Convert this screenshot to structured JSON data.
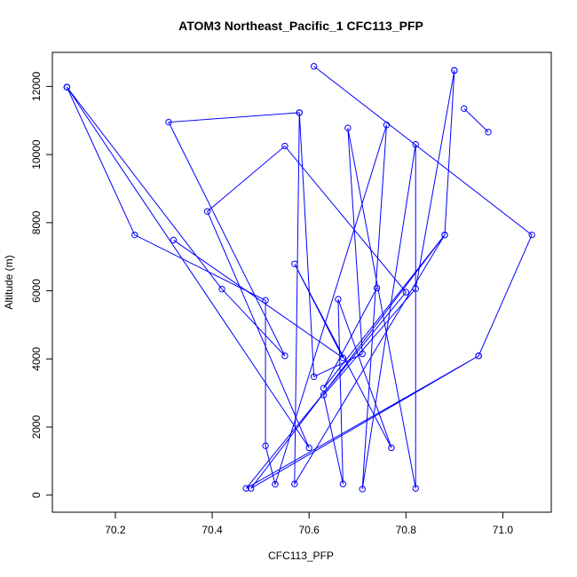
{
  "chart_data": {
    "type": "line",
    "title": "ATOM3 Northeast_Pacific_1 CFC113_PFP",
    "xlabel": "CFC113_PFP",
    "ylabel": "Altitude (m)",
    "xlim": [
      70.07,
      71.1
    ],
    "ylim": [
      -500,
      13000
    ],
    "x_ticks": [
      70.2,
      70.4,
      70.6,
      70.8,
      71.0
    ],
    "x_tick_labels": [
      "70.2",
      "70.4",
      "70.6",
      "70.8",
      "71.0"
    ],
    "y_ticks": [
      0,
      2000,
      4000,
      6000,
      8000,
      10000,
      12000
    ],
    "y_tick_labels": [
      "0",
      "2000",
      "4000",
      "6000",
      "8000",
      "10000",
      "12000"
    ],
    "grid": false,
    "series": [
      {
        "color": "#0000ff",
        "markers": "open-circle",
        "points": [
          {
            "x": 70.1,
            "y": 11980
          },
          {
            "x": 70.24,
            "y": 7640
          },
          {
            "x": 70.51,
            "y": 5720
          },
          {
            "x": 70.51,
            "y": 1450
          },
          {
            "x": 70.53,
            "y": 320
          },
          {
            "x": 70.76,
            "y": 10870
          },
          {
            "x": 70.71,
            "y": 180
          },
          {
            "x": 70.82,
            "y": 10300
          },
          {
            "x": 70.82,
            "y": 200
          },
          {
            "x": 70.68,
            "y": 10780
          },
          {
            "x": 70.71,
            "y": 4150
          },
          {
            "x": 70.61,
            "y": 3480
          },
          {
            "x": 70.58,
            "y": 11230
          },
          {
            "x": 70.57,
            "y": 330
          },
          {
            "x": 70.88,
            "y": 7640
          },
          {
            "x": 70.48,
            "y": 200
          },
          {
            "x": 70.95,
            "y": 4090
          },
          {
            "x": 70.47,
            "y": 200
          },
          {
            "x": 70.8,
            "y": 5960
          },
          {
            "x": 70.55,
            "y": 10250
          },
          {
            "x": 70.39,
            "y": 8330
          },
          {
            "x": 70.6,
            "y": 1390
          },
          {
            "x": 70.1,
            "y": 11980
          },
          {
            "x": 70.1,
            "y": 11980
          },
          {
            "x": 70.42,
            "y": 6050
          },
          {
            "x": 70.55,
            "y": 4090
          },
          {
            "x": 70.31,
            "y": 10950
          },
          {
            "x": 70.58,
            "y": 11230
          }
        ]
      },
      {
        "color": "#0000ff",
        "markers": "open-circle",
        "points": [
          {
            "x": 70.61,
            "y": 12590
          },
          {
            "x": 71.06,
            "y": 7640
          },
          {
            "x": 70.95,
            "y": 4090
          }
        ]
      },
      {
        "color": "#0000ff",
        "markers": "open-circle",
        "points": [
          {
            "x": 70.9,
            "y": 12470
          },
          {
            "x": 70.88,
            "y": 7640
          },
          {
            "x": 70.63,
            "y": 3140
          },
          {
            "x": 70.74,
            "y": 6080
          }
        ]
      },
      {
        "color": "#0000ff",
        "markers": "open-circle",
        "points": [
          {
            "x": 70.92,
            "y": 11350
          },
          {
            "x": 70.97,
            "y": 10660
          }
        ]
      },
      {
        "color": "#0000ff",
        "markers": "open-circle",
        "points": [
          {
            "x": 70.32,
            "y": 7490
          },
          {
            "x": 70.67,
            "y": 4030
          },
          {
            "x": 70.57,
            "y": 6790
          },
          {
            "x": 70.77,
            "y": 1390
          },
          {
            "x": 70.66,
            "y": 5750
          },
          {
            "x": 70.67,
            "y": 330
          },
          {
            "x": 70.63,
            "y": 2940
          },
          {
            "x": 70.82,
            "y": 6060
          },
          {
            "x": 70.9,
            "y": 12470
          }
        ]
      }
    ]
  }
}
